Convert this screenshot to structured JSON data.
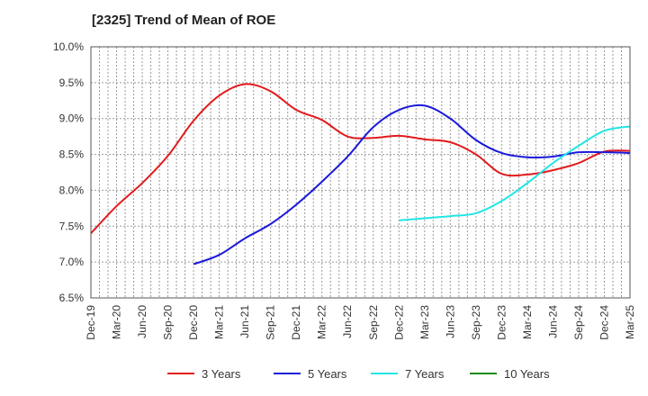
{
  "chart_data": {
    "type": "line",
    "title": "[2325]  Trend of Mean of ROE",
    "xlabel": "",
    "ylabel": "",
    "ylim": [
      6.5,
      10.0
    ],
    "y_ticks": [
      "6.5%",
      "7.0%",
      "7.5%",
      "8.0%",
      "8.5%",
      "9.0%",
      "9.5%",
      "10.0%"
    ],
    "y_tick_values": [
      6.5,
      7.0,
      7.5,
      8.0,
      8.5,
      9.0,
      9.5,
      10.0
    ],
    "x_ticks": [
      "Dec-19",
      "Mar-20",
      "Jun-20",
      "Sep-20",
      "Dec-20",
      "Mar-21",
      "Jun-21",
      "Sep-21",
      "Dec-21",
      "Mar-22",
      "Jun-22",
      "Sep-22",
      "Dec-22",
      "Mar-23",
      "Jun-23",
      "Sep-23",
      "Dec-23",
      "Mar-24",
      "Jun-24",
      "Sep-24",
      "Dec-24",
      "Mar-25"
    ],
    "grid": true,
    "legend_position": "bottom",
    "series": [
      {
        "name": "3 Years",
        "color": "#e31a1c",
        "points": [
          [
            "Dec-19",
            7.4
          ],
          [
            "Mar-20",
            7.78
          ],
          [
            "Jun-20",
            8.1
          ],
          [
            "Sep-20",
            8.48
          ],
          [
            "Dec-20",
            8.97
          ],
          [
            "Mar-21",
            9.32
          ],
          [
            "Jun-21",
            9.48
          ],
          [
            "Sep-21",
            9.38
          ],
          [
            "Dec-21",
            9.12
          ],
          [
            "Mar-22",
            8.98
          ],
          [
            "Jun-22",
            8.75
          ],
          [
            "Sep-22",
            8.73
          ],
          [
            "Dec-22",
            8.76
          ],
          [
            "Mar-23",
            8.71
          ],
          [
            "Jun-23",
            8.67
          ],
          [
            "Sep-23",
            8.5
          ],
          [
            "Dec-23",
            8.23
          ],
          [
            "Mar-24",
            8.22
          ],
          [
            "Jun-24",
            8.28
          ],
          [
            "Sep-24",
            8.38
          ],
          [
            "Dec-24",
            8.54
          ],
          [
            "Mar-25",
            8.55
          ]
        ]
      },
      {
        "name": "5 Years",
        "color": "#1a1adb",
        "points": [
          [
            "Dec-20",
            6.97
          ],
          [
            "Mar-21",
            7.1
          ],
          [
            "Jun-21",
            7.33
          ],
          [
            "Sep-21",
            7.53
          ],
          [
            "Dec-21",
            7.8
          ],
          [
            "Mar-22",
            8.12
          ],
          [
            "Jun-22",
            8.47
          ],
          [
            "Sep-22",
            8.88
          ],
          [
            "Dec-22",
            9.12
          ],
          [
            "Mar-23",
            9.18
          ],
          [
            "Jun-23",
            9.0
          ],
          [
            "Sep-23",
            8.7
          ],
          [
            "Dec-23",
            8.52
          ],
          [
            "Mar-24",
            8.46
          ],
          [
            "Jun-24",
            8.47
          ],
          [
            "Sep-24",
            8.53
          ],
          [
            "Dec-24",
            8.53
          ],
          [
            "Mar-25",
            8.52
          ]
        ]
      },
      {
        "name": "7 Years",
        "color": "#22e5e5",
        "points": [
          [
            "Dec-22",
            7.58
          ],
          [
            "Mar-23",
            7.61
          ],
          [
            "Jun-23",
            7.64
          ],
          [
            "Sep-23",
            7.68
          ],
          [
            "Dec-23",
            7.85
          ],
          [
            "Mar-24",
            8.1
          ],
          [
            "Jun-24",
            8.38
          ],
          [
            "Sep-24",
            8.62
          ],
          [
            "Dec-24",
            8.83
          ],
          [
            "Mar-25",
            8.89
          ]
        ]
      },
      {
        "name": "10 Years",
        "color": "#1a8a1a",
        "points": []
      }
    ]
  }
}
